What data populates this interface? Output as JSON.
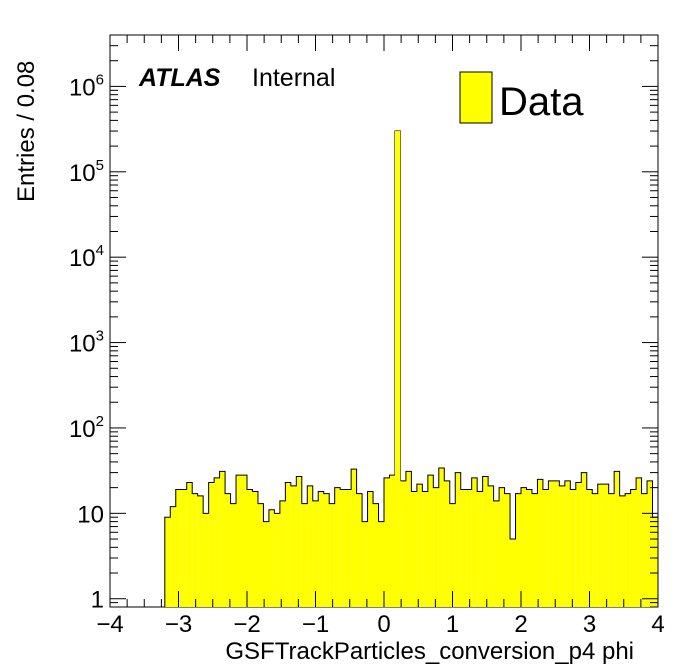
{
  "chart_data": {
    "type": "bar",
    "style": "histogram",
    "xlabel": "GSFTrackParticles_conversion_p4 phi",
    "ylabel": "Entries / 0.08",
    "xlim": [
      -4,
      4
    ],
    "ylim": [
      0.8,
      4000000
    ],
    "log_y": true,
    "bin_width": 0.08,
    "x_start": -3.2,
    "fill_color": "#ffff00",
    "edge_color": "#000000",
    "x_ticks": [
      "-4",
      "-3",
      "-2",
      "-1",
      "0",
      "1",
      "2",
      "3",
      "4"
    ],
    "y_ticks": [
      {
        "value": 1,
        "base": "1",
        "exp": ""
      },
      {
        "value": 10,
        "base": "10",
        "exp": ""
      },
      {
        "value": 100,
        "base": "10",
        "exp": "2"
      },
      {
        "value": 1000,
        "base": "10",
        "exp": "3"
      },
      {
        "value": 10000,
        "base": "10",
        "exp": "4"
      },
      {
        "value": 100000,
        "base": "10",
        "exp": "5"
      },
      {
        "value": 1000000,
        "base": "10",
        "exp": "6"
      }
    ],
    "legend": {
      "label": "Data",
      "position": "top-right"
    },
    "series": [
      {
        "values": [
          9,
          12,
          19,
          19,
          23,
          17,
          16,
          10,
          23,
          26,
          31,
          17,
          13,
          28,
          28,
          19,
          18,
          13,
          8,
          11,
          10,
          14,
          23,
          21,
          27,
          13,
          21,
          14,
          18,
          17,
          13,
          20,
          19,
          19,
          33,
          17,
          8,
          18,
          13,
          8,
          26,
          28,
          300000,
          24,
          31,
          18,
          22,
          18,
          28,
          20,
          34,
          24,
          13,
          30,
          19,
          19,
          26,
          18,
          27,
          21,
          14,
          20,
          17,
          5,
          17,
          20,
          19,
          17,
          25,
          19,
          24,
          24,
          21,
          24,
          19,
          23,
          30,
          19,
          17,
          22,
          22,
          17,
          31,
          16,
          17,
          19,
          26,
          17,
          24,
          9
        ]
      }
    ]
  },
  "annotation": {
    "brand": "ATLAS",
    "status": "Internal"
  }
}
